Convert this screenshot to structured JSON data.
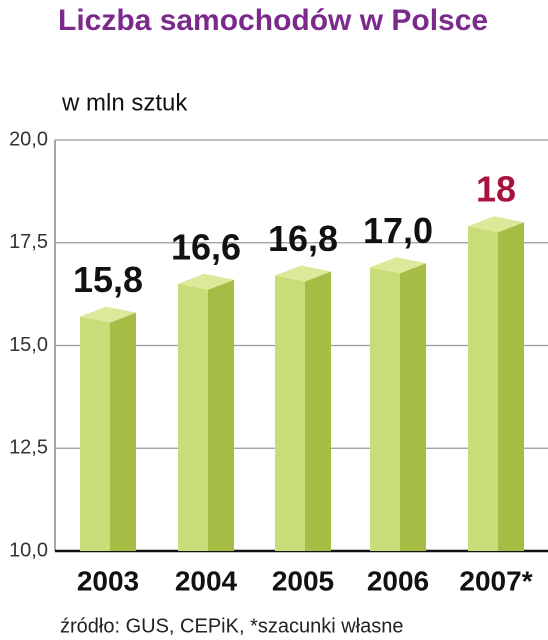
{
  "chart_data": {
    "type": "bar3d",
    "title": "Liczba samochodów w Polsce",
    "subtitle": "w mln sztuk",
    "source": "źródło: GUS, CEPiK, *szacunki własne",
    "categories": [
      "2003",
      "2004",
      "2005",
      "2006",
      "2007*"
    ],
    "values": [
      15.8,
      16.6,
      16.8,
      17.0,
      18
    ],
    "value_labels": [
      "15,8",
      "16,6",
      "16,8",
      "17,0",
      "18"
    ],
    "value_label_colors": [
      "#111111",
      "#111111",
      "#111111",
      "#111111",
      "#a8123e"
    ],
    "color": "#c8dc78",
    "side_color": "#a5bd45",
    "top_color": "#dbe99a",
    "ylim": [
      10,
      20
    ],
    "yticks": [
      {
        "value": 10,
        "label": "10,0"
      },
      {
        "value": 12.5,
        "label": "12,5"
      },
      {
        "value": 15,
        "label": "15,0"
      },
      {
        "value": 17.5,
        "label": "17,5"
      },
      {
        "value": 20,
        "label": "20,0"
      }
    ],
    "grid": true
  }
}
